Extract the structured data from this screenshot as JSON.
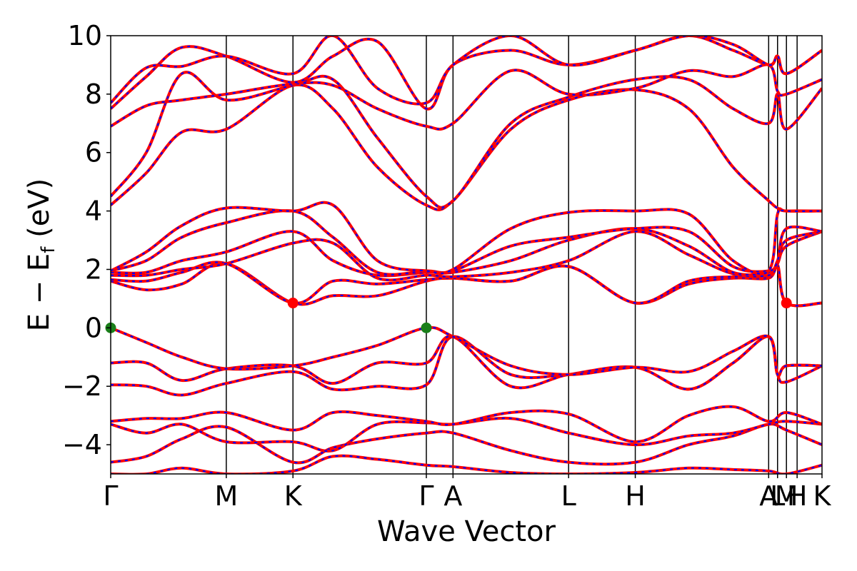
{
  "chart_data": {
    "type": "line",
    "xlabel": "Wave Vector",
    "ylabel_parts": {
      "main": "E − E",
      "sub": "f",
      "unit": " (eV)"
    },
    "ylim": [
      -5,
      10
    ],
    "yticks": [
      -4,
      -2,
      0,
      2,
      4,
      6,
      8,
      10
    ],
    "ytick_labels": [
      "−4",
      "−2",
      "0",
      "2",
      "4",
      "6",
      "8",
      "10"
    ],
    "xlim": [
      0,
      8.0
    ],
    "kpoints": [
      {
        "label": "Γ",
        "x": 0.0
      },
      {
        "label": "M",
        "x": 1.3
      },
      {
        "label": "K",
        "x": 2.05
      },
      {
        "label": "Γ",
        "x": 3.55
      },
      {
        "label": "A",
        "x": 3.85
      },
      {
        "label": "L",
        "x": 5.15
      },
      {
        "label": "H",
        "x": 5.9
      },
      {
        "label": "A",
        "x": 7.4
      },
      {
        "label": "L",
        "x": 7.5
      },
      {
        "label": "M",
        "x": 7.6
      },
      {
        "label": "H",
        "x": 7.72
      },
      {
        "label": "K",
        "x": 8.0
      }
    ],
    "series_colors": {
      "band_solid": "#ff0000",
      "band_dashed": "#0000ff"
    },
    "bands": [
      [
        [
          0,
          -5.0
        ],
        [
          0.4,
          -5.0
        ],
        [
          0.8,
          -4.8
        ],
        [
          1.3,
          -5.0
        ],
        [
          2.05,
          -4.9
        ],
        [
          2.5,
          -4.4
        ],
        [
          3.0,
          -4.5
        ],
        [
          3.55,
          -4.7
        ],
        [
          3.85,
          -4.75
        ],
        [
          4.5,
          -4.95
        ],
        [
          5.15,
          -5.0
        ],
        [
          5.9,
          -4.95
        ],
        [
          6.5,
          -4.8
        ],
        [
          7.0,
          -4.85
        ],
        [
          7.4,
          -4.9
        ],
        [
          7.6,
          -5.0
        ],
        [
          8.0,
          -4.7
        ]
      ],
      [
        [
          0,
          -4.6
        ],
        [
          0.4,
          -4.4
        ],
        [
          0.8,
          -3.8
        ],
        [
          1.3,
          -3.4
        ],
        [
          2.05,
          -4.6
        ],
        [
          2.5,
          -4.1
        ],
        [
          3.0,
          -3.8
        ],
        [
          3.55,
          -3.6
        ],
        [
          3.85,
          -3.6
        ],
        [
          4.5,
          -4.2
        ],
        [
          5.15,
          -4.6
        ],
        [
          5.9,
          -4.6
        ],
        [
          6.5,
          -4.0
        ],
        [
          7.0,
          -3.7
        ],
        [
          7.4,
          -3.3
        ],
        [
          7.6,
          -3.5
        ],
        [
          8.0,
          -4.0
        ]
      ],
      [
        [
          0,
          -3.3
        ],
        [
          0.4,
          -3.6
        ],
        [
          0.8,
          -3.3
        ],
        [
          1.3,
          -3.9
        ],
        [
          2.05,
          -3.9
        ],
        [
          2.5,
          -4.2
        ],
        [
          3.0,
          -3.3
        ],
        [
          3.55,
          -3.25
        ],
        [
          3.85,
          -3.3
        ],
        [
          4.5,
          -3.1
        ],
        [
          5.15,
          -3.6
        ],
        [
          5.9,
          -4.0
        ],
        [
          6.5,
          -3.7
        ],
        [
          7.0,
          -3.6
        ],
        [
          7.4,
          -3.3
        ],
        [
          7.6,
          -3.2
        ],
        [
          8.0,
          -3.3
        ]
      ],
      [
        [
          0,
          -3.2
        ],
        [
          0.4,
          -3.1
        ],
        [
          0.8,
          -3.1
        ],
        [
          1.3,
          -2.9
        ],
        [
          2.05,
          -3.5
        ],
        [
          2.5,
          -2.9
        ],
        [
          3.0,
          -3.0
        ],
        [
          3.55,
          -3.2
        ],
        [
          3.85,
          -3.3
        ],
        [
          4.5,
          -2.9
        ],
        [
          5.15,
          -2.95
        ],
        [
          5.9,
          -3.9
        ],
        [
          6.5,
          -3.0
        ],
        [
          7.0,
          -2.7
        ],
        [
          7.4,
          -3.2
        ],
        [
          7.6,
          -2.9
        ],
        [
          8.0,
          -3.3
        ]
      ],
      [
        [
          0,
          -1.95
        ],
        [
          0.4,
          -2.0
        ],
        [
          0.8,
          -2.3
        ],
        [
          1.3,
          -1.9
        ],
        [
          2.05,
          -1.5
        ],
        [
          2.5,
          -2.1
        ],
        [
          3.0,
          -2.0
        ],
        [
          3.55,
          -1.95
        ],
        [
          3.85,
          -0.3
        ],
        [
          4.5,
          -1.6
        ],
        [
          5.15,
          -1.6
        ],
        [
          5.9,
          -1.35
        ],
        [
          6.5,
          -2.1
        ],
        [
          7.0,
          -1.2
        ],
        [
          7.4,
          -0.3
        ],
        [
          7.5,
          -1.6
        ],
        [
          7.6,
          -1.85
        ],
        [
          8.0,
          -1.3
        ]
      ],
      [
        [
          0,
          -1.2
        ],
        [
          0.4,
          -1.2
        ],
        [
          0.8,
          -1.8
        ],
        [
          1.3,
          -1.4
        ],
        [
          2.05,
          -1.3
        ],
        [
          2.5,
          -1.9
        ],
        [
          3.0,
          -1.2
        ],
        [
          3.55,
          -1.2
        ],
        [
          3.85,
          -0.3
        ],
        [
          4.5,
          -2.0
        ],
        [
          5.15,
          -1.6
        ],
        [
          5.9,
          -1.35
        ],
        [
          6.5,
          -2.1
        ],
        [
          7.0,
          -1.2
        ],
        [
          7.4,
          -0.3
        ],
        [
          7.5,
          -1.6
        ],
        [
          7.6,
          -1.3
        ],
        [
          8.0,
          -1.3
        ]
      ],
      [
        [
          0,
          0.0
        ],
        [
          0.4,
          -0.5
        ],
        [
          0.8,
          -1.0
        ],
        [
          1.3,
          -1.4
        ],
        [
          2.05,
          -1.3
        ],
        [
          2.5,
          -1.0
        ],
        [
          3.0,
          -0.6
        ],
        [
          3.55,
          0.0
        ],
        [
          3.85,
          -0.3
        ],
        [
          4.5,
          -1.3
        ],
        [
          5.15,
          -1.6
        ],
        [
          5.9,
          -1.35
        ],
        [
          6.5,
          -1.5
        ],
        [
          7.0,
          -0.8
        ],
        [
          7.4,
          -0.3
        ],
        [
          7.5,
          -1.6
        ],
        [
          7.6,
          -1.3
        ],
        [
          8.0,
          -1.3
        ]
      ],
      [
        [
          0,
          1.6
        ],
        [
          0.4,
          1.3
        ],
        [
          0.8,
          1.5
        ],
        [
          1.3,
          2.2
        ],
        [
          2.05,
          0.85
        ],
        [
          2.5,
          1.1
        ],
        [
          3.0,
          1.1
        ],
        [
          3.55,
          1.6
        ],
        [
          3.85,
          1.7
        ],
        [
          4.5,
          1.6
        ],
        [
          5.15,
          2.1
        ],
        [
          5.9,
          0.85
        ],
        [
          6.5,
          1.5
        ],
        [
          7.0,
          1.7
        ],
        [
          7.4,
          1.7
        ],
        [
          7.5,
          2.1
        ],
        [
          7.6,
          0.85
        ],
        [
          8.0,
          0.85
        ]
      ],
      [
        [
          0,
          1.65
        ],
        [
          0.4,
          1.6
        ],
        [
          0.8,
          1.9
        ],
        [
          1.3,
          2.2
        ],
        [
          2.05,
          0.85
        ],
        [
          2.5,
          1.6
        ],
        [
          3.0,
          1.5
        ],
        [
          3.55,
          1.65
        ],
        [
          3.85,
          1.7
        ],
        [
          4.5,
          1.6
        ],
        [
          5.15,
          2.1
        ],
        [
          5.9,
          0.85
        ],
        [
          6.5,
          1.6
        ],
        [
          7.0,
          1.75
        ],
        [
          7.4,
          1.75
        ],
        [
          7.5,
          2.15
        ],
        [
          7.6,
          0.85
        ],
        [
          8.0,
          0.85
        ]
      ],
      [
        [
          0,
          1.8
        ],
        [
          0.4,
          1.8
        ],
        [
          0.8,
          2.0
        ],
        [
          1.3,
          2.2
        ],
        [
          2.05,
          2.9
        ],
        [
          2.5,
          2.9
        ],
        [
          3.0,
          1.7
        ],
        [
          3.55,
          1.8
        ],
        [
          3.85,
          1.75
        ],
        [
          4.5,
          1.9
        ],
        [
          5.15,
          2.3
        ],
        [
          5.9,
          3.3
        ],
        [
          6.5,
          2.5
        ],
        [
          7.0,
          1.85
        ],
        [
          7.4,
          1.8
        ],
        [
          7.5,
          2.2
        ],
        [
          7.6,
          2.8
        ],
        [
          8.0,
          3.3
        ]
      ],
      [
        [
          0,
          1.9
        ],
        [
          0.4,
          1.9
        ],
        [
          0.8,
          2.3
        ],
        [
          1.3,
          2.6
        ],
        [
          2.05,
          3.3
        ],
        [
          2.5,
          2.3
        ],
        [
          3.0,
          1.8
        ],
        [
          3.55,
          1.9
        ],
        [
          3.85,
          1.9
        ],
        [
          4.5,
          2.3
        ],
        [
          5.15,
          3.0
        ],
        [
          5.9,
          3.4
        ],
        [
          6.5,
          2.8
        ],
        [
          7.0,
          1.9
        ],
        [
          7.4,
          1.9
        ],
        [
          7.5,
          2.3
        ],
        [
          7.6,
          3.0
        ],
        [
          8.0,
          3.3
        ]
      ],
      [
        [
          0,
          1.95
        ],
        [
          0.4,
          2.3
        ],
        [
          0.8,
          3.1
        ],
        [
          1.3,
          3.6
        ],
        [
          2.05,
          4.0
        ],
        [
          2.5,
          3.1
        ],
        [
          3.0,
          1.9
        ],
        [
          3.55,
          1.95
        ],
        [
          3.85,
          1.95
        ],
        [
          4.5,
          2.8
        ],
        [
          5.15,
          3.1
        ],
        [
          5.9,
          3.4
        ],
        [
          6.5,
          3.3
        ],
        [
          7.0,
          2.1
        ],
        [
          7.4,
          1.95
        ],
        [
          7.5,
          2.3
        ],
        [
          7.6,
          3.4
        ],
        [
          8.0,
          3.3
        ]
      ],
      [
        [
          0,
          1.95
        ],
        [
          0.4,
          2.6
        ],
        [
          0.8,
          3.5
        ],
        [
          1.3,
          4.1
        ],
        [
          2.05,
          4.0
        ],
        [
          2.5,
          4.2
        ],
        [
          3.0,
          2.3
        ],
        [
          3.55,
          1.95
        ],
        [
          3.85,
          2.0
        ],
        [
          4.5,
          3.4
        ],
        [
          5.15,
          3.95
        ],
        [
          5.9,
          4.0
        ],
        [
          6.5,
          3.9
        ],
        [
          7.0,
          2.3
        ],
        [
          7.4,
          1.95
        ],
        [
          7.5,
          3.9
        ],
        [
          7.6,
          4.0
        ],
        [
          8.0,
          4.0
        ]
      ],
      [
        [
          0,
          4.2
        ],
        [
          0.4,
          5.3
        ],
        [
          0.8,
          6.7
        ],
        [
          1.3,
          6.8
        ],
        [
          2.05,
          8.3
        ],
        [
          2.5,
          7.5
        ],
        [
          3.0,
          5.5
        ],
        [
          3.55,
          4.2
        ],
        [
          3.85,
          4.35
        ],
        [
          4.5,
          6.8
        ],
        [
          5.15,
          7.8
        ],
        [
          5.9,
          8.15
        ],
        [
          6.5,
          7.5
        ],
        [
          7.0,
          5.5
        ],
        [
          7.4,
          4.35
        ],
        [
          7.5,
          4.1
        ],
        [
          7.6,
          4.0
        ],
        [
          8.0,
          4.0
        ]
      ],
      [
        [
          0,
          4.5
        ],
        [
          0.4,
          6.0
        ],
        [
          0.8,
          8.7
        ],
        [
          1.3,
          7.8
        ],
        [
          2.05,
          8.3
        ],
        [
          2.5,
          8.5
        ],
        [
          3.0,
          6.5
        ],
        [
          3.55,
          4.5
        ],
        [
          3.85,
          4.35
        ],
        [
          4.5,
          7.0
        ],
        [
          5.15,
          7.9
        ],
        [
          5.9,
          8.5
        ],
        [
          6.5,
          8.5
        ],
        [
          7.0,
          7.5
        ],
        [
          7.4,
          7.0
        ],
        [
          7.5,
          8.0
        ],
        [
          7.6,
          6.8
        ],
        [
          8.0,
          8.2
        ]
      ],
      [
        [
          0,
          6.9
        ],
        [
          0.4,
          7.6
        ],
        [
          0.8,
          7.8
        ],
        [
          1.3,
          8.0
        ],
        [
          2.05,
          8.35
        ],
        [
          2.5,
          8.3
        ],
        [
          3.0,
          7.5
        ],
        [
          3.55,
          6.9
        ],
        [
          3.85,
          7.0
        ],
        [
          4.5,
          8.8
        ],
        [
          5.15,
          8.0
        ],
        [
          5.9,
          8.2
        ],
        [
          6.5,
          8.8
        ],
        [
          7.0,
          8.6
        ],
        [
          7.4,
          9.0
        ],
        [
          7.5,
          8.1
        ],
        [
          7.6,
          8.0
        ],
        [
          8.0,
          8.5
        ]
      ],
      [
        [
          0,
          7.5
        ],
        [
          0.4,
          8.6
        ],
        [
          0.8,
          9.6
        ],
        [
          1.3,
          9.3
        ],
        [
          2.05,
          8.4
        ],
        [
          2.5,
          9.3
        ],
        [
          3.0,
          9.8
        ],
        [
          3.55,
          7.5
        ],
        [
          3.85,
          9.0
        ],
        [
          4.5,
          9.5
        ],
        [
          5.15,
          9.0
        ],
        [
          5.9,
          9.5
        ],
        [
          6.5,
          10.0
        ],
        [
          7.0,
          9.5
        ],
        [
          7.4,
          9.0
        ],
        [
          7.5,
          9.3
        ],
        [
          7.6,
          8.7
        ],
        [
          8.0,
          9.5
        ]
      ],
      [
        [
          0,
          7.7
        ],
        [
          0.4,
          8.9
        ],
        [
          0.8,
          8.95
        ],
        [
          1.3,
          9.3
        ],
        [
          2.05,
          8.7
        ],
        [
          2.5,
          10.0
        ],
        [
          3.0,
          8.2
        ],
        [
          3.55,
          7.7
        ],
        [
          3.85,
          9.0
        ],
        [
          4.5,
          10.0
        ],
        [
          5.15,
          9.0
        ],
        [
          5.9,
          9.5
        ],
        [
          6.5,
          10.0
        ],
        [
          7.0,
          9.7
        ],
        [
          7.4,
          9.0
        ],
        [
          7.5,
          9.3
        ],
        [
          7.6,
          8.7
        ],
        [
          8.0,
          9.5
        ]
      ]
    ],
    "markers": [
      {
        "x": 0.0,
        "y": 0.0,
        "color": "#1a7f1a"
      },
      {
        "x": 3.55,
        "y": 0.0,
        "color": "#1a7f1a"
      },
      {
        "x": 2.05,
        "y": 0.85,
        "color": "#ff0000"
      },
      {
        "x": 7.6,
        "y": 0.85,
        "color": "#ff0000"
      }
    ]
  }
}
